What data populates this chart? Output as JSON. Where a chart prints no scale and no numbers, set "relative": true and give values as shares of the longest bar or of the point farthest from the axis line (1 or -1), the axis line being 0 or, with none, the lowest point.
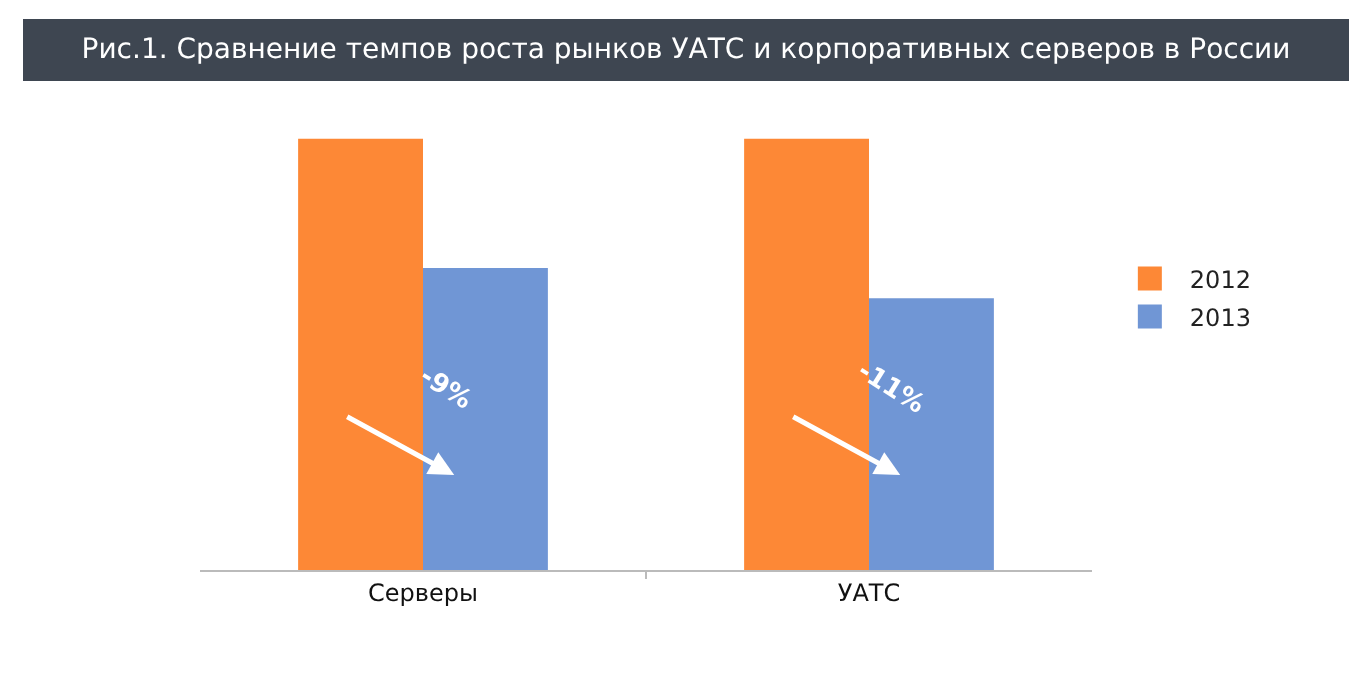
{
  "chart_data": {
    "type": "bar",
    "title": "Рис.1. Сравнение темпов роста рынков УАТС и корпоративных серверов в России",
    "categories": [
      "Серверы",
      "УАТС"
    ],
    "relative": true,
    "series": [
      {
        "name": "2012",
        "color": "#fd8836",
        "values": [
          1,
          1
        ]
      },
      {
        "name": "2013",
        "color": "#7096d5",
        "values": [
          0.7,
          0.63
        ]
      }
    ],
    "annotations": [
      {
        "text": "-9%",
        "x": "Серверы",
        "y": 0.42
      },
      {
        "text": "-11%",
        "x": "УАТС",
        "y": 0.42
      }
    ],
    "legend": "right"
  }
}
